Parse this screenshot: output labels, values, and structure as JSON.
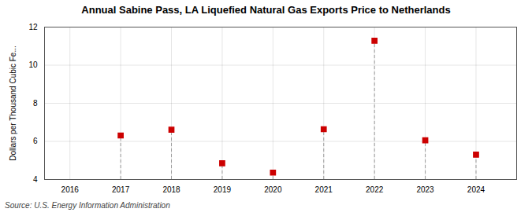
{
  "chart_data": {
    "type": "lollipop",
    "title": "Annual Sabine Pass, LA Liquefied Natural Gas Exports Price to Netherlands",
    "ylabel": "Dollars per Thousand Cubic Fe...",
    "annotation": "Source: U.S. Energy Information Administration",
    "x": [
      2017,
      2018,
      2019,
      2020,
      2021,
      2022,
      2023,
      2024
    ],
    "values": [
      6.31,
      6.61,
      4.85,
      4.36,
      6.64,
      11.28,
      6.06,
      5.3
    ],
    "color": "#cc0000",
    "marker": "square",
    "xlim": [
      2015.5,
      2024.8
    ],
    "xticks": [
      2016,
      2017,
      2018,
      2019,
      2020,
      2021,
      2022,
      2023,
      2024
    ],
    "ylim": [
      4,
      12
    ],
    "yticks": [
      4,
      6,
      8,
      10,
      12
    ],
    "grid": true
  }
}
